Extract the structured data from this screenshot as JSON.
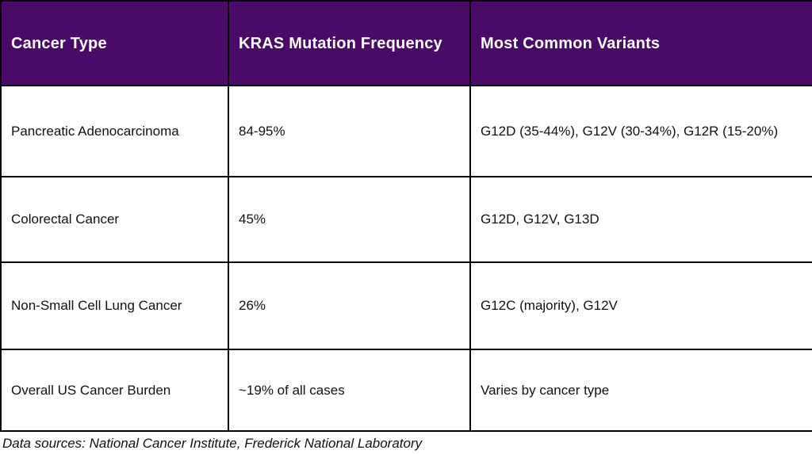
{
  "chart_data": {
    "type": "table",
    "title": "",
    "columns": [
      "Cancer Type",
      "KRAS Mutation Frequency",
      "Most Common Variants"
    ],
    "rows": [
      [
        "Pancreatic Adenocarcinoma",
        "84-95%",
        "G12D (35-44%), G12V (30-34%), G12R (15-20%)"
      ],
      [
        "Colorectal Cancer",
        "45%",
        "G12D, G12V, G13D"
      ],
      [
        "Non-Small Cell Lung Cancer",
        "26%",
        "G12C (majority), G12V"
      ],
      [
        "Overall US Cancer Burden",
        "~19% of all cases",
        "Varies by cancer type"
      ]
    ],
    "note": "Data sources: National Cancer Institute, Frederick National Laboratory"
  },
  "table": {
    "columns": [
      "Cancer Type",
      "KRAS Mutation Frequency",
      "Most Common Variants"
    ],
    "rows": [
      [
        "Pancreatic Adenocarcinoma",
        "84-95%",
        "G12D (35-44%), G12V (30-34%), G12R (15-20%)"
      ],
      [
        "Colorectal Cancer",
        "45%",
        "G12D, G12V, G13D"
      ],
      [
        "Non-Small Cell Lung Cancer",
        "26%",
        "G12C (majority), G12V"
      ],
      [
        "Overall US Cancer Burden",
        "~19% of all cases",
        "Varies by cancer type"
      ]
    ]
  },
  "footer": {
    "text": "Data sources: National Cancer Institute, Frederick National Laboratory"
  },
  "colors": {
    "header_bg": "#4A0A68",
    "header_text": "#FFFFFF",
    "body_text": "#111111",
    "border": "#000000",
    "background": "#FFFFFF"
  }
}
